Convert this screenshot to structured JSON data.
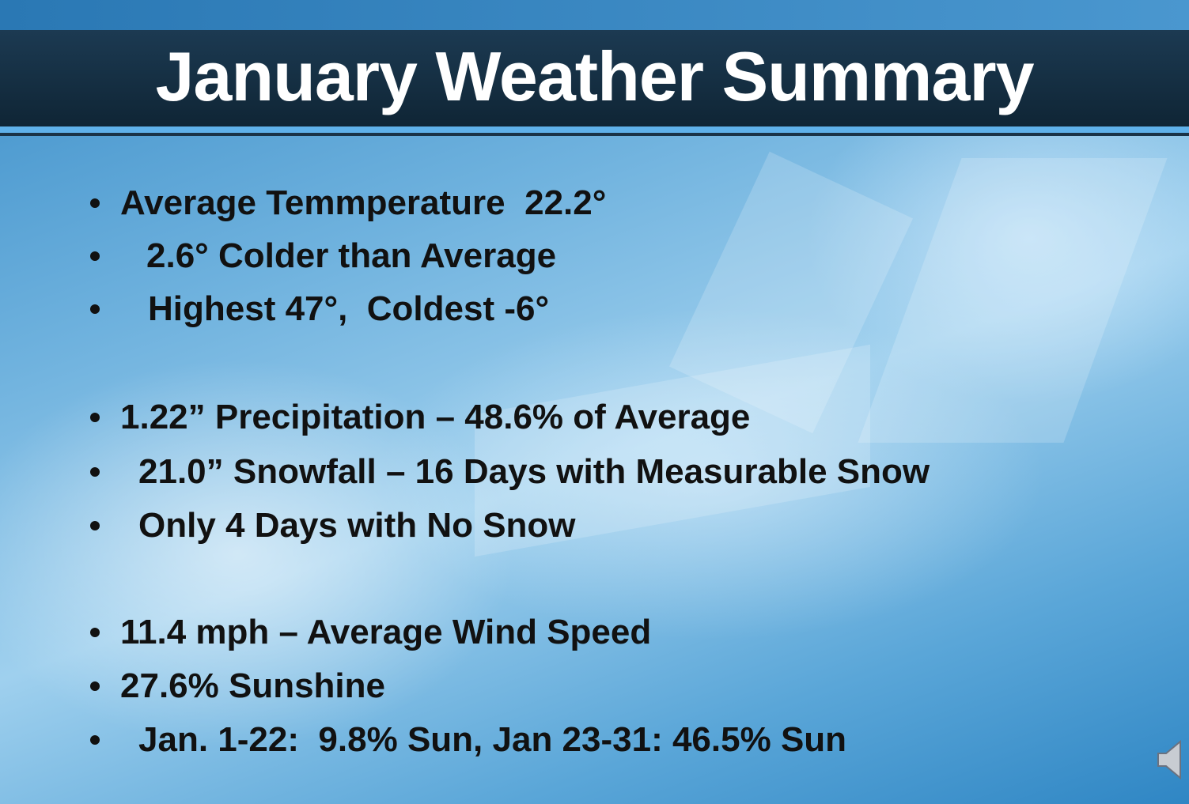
{
  "title": "January Weather Summary",
  "groups": [
    [
      "Average Temmperature  22.2°",
      "2.6° Colder than Average",
      "Highest 47°,  Coldest -6°"
    ],
    [
      "1.22” Precipitation – 48.6% of Average",
      "21.0” Snowfall – 16 Days with Measurable Snow",
      "Only 4 Days with No Snow"
    ],
    [
      "11.4 mph – Average Wind Speed",
      "27.6% Sunshine",
      "Jan. 1-22:  9.8% Sun, Jan 23-31: 46.5% Sun"
    ]
  ]
}
